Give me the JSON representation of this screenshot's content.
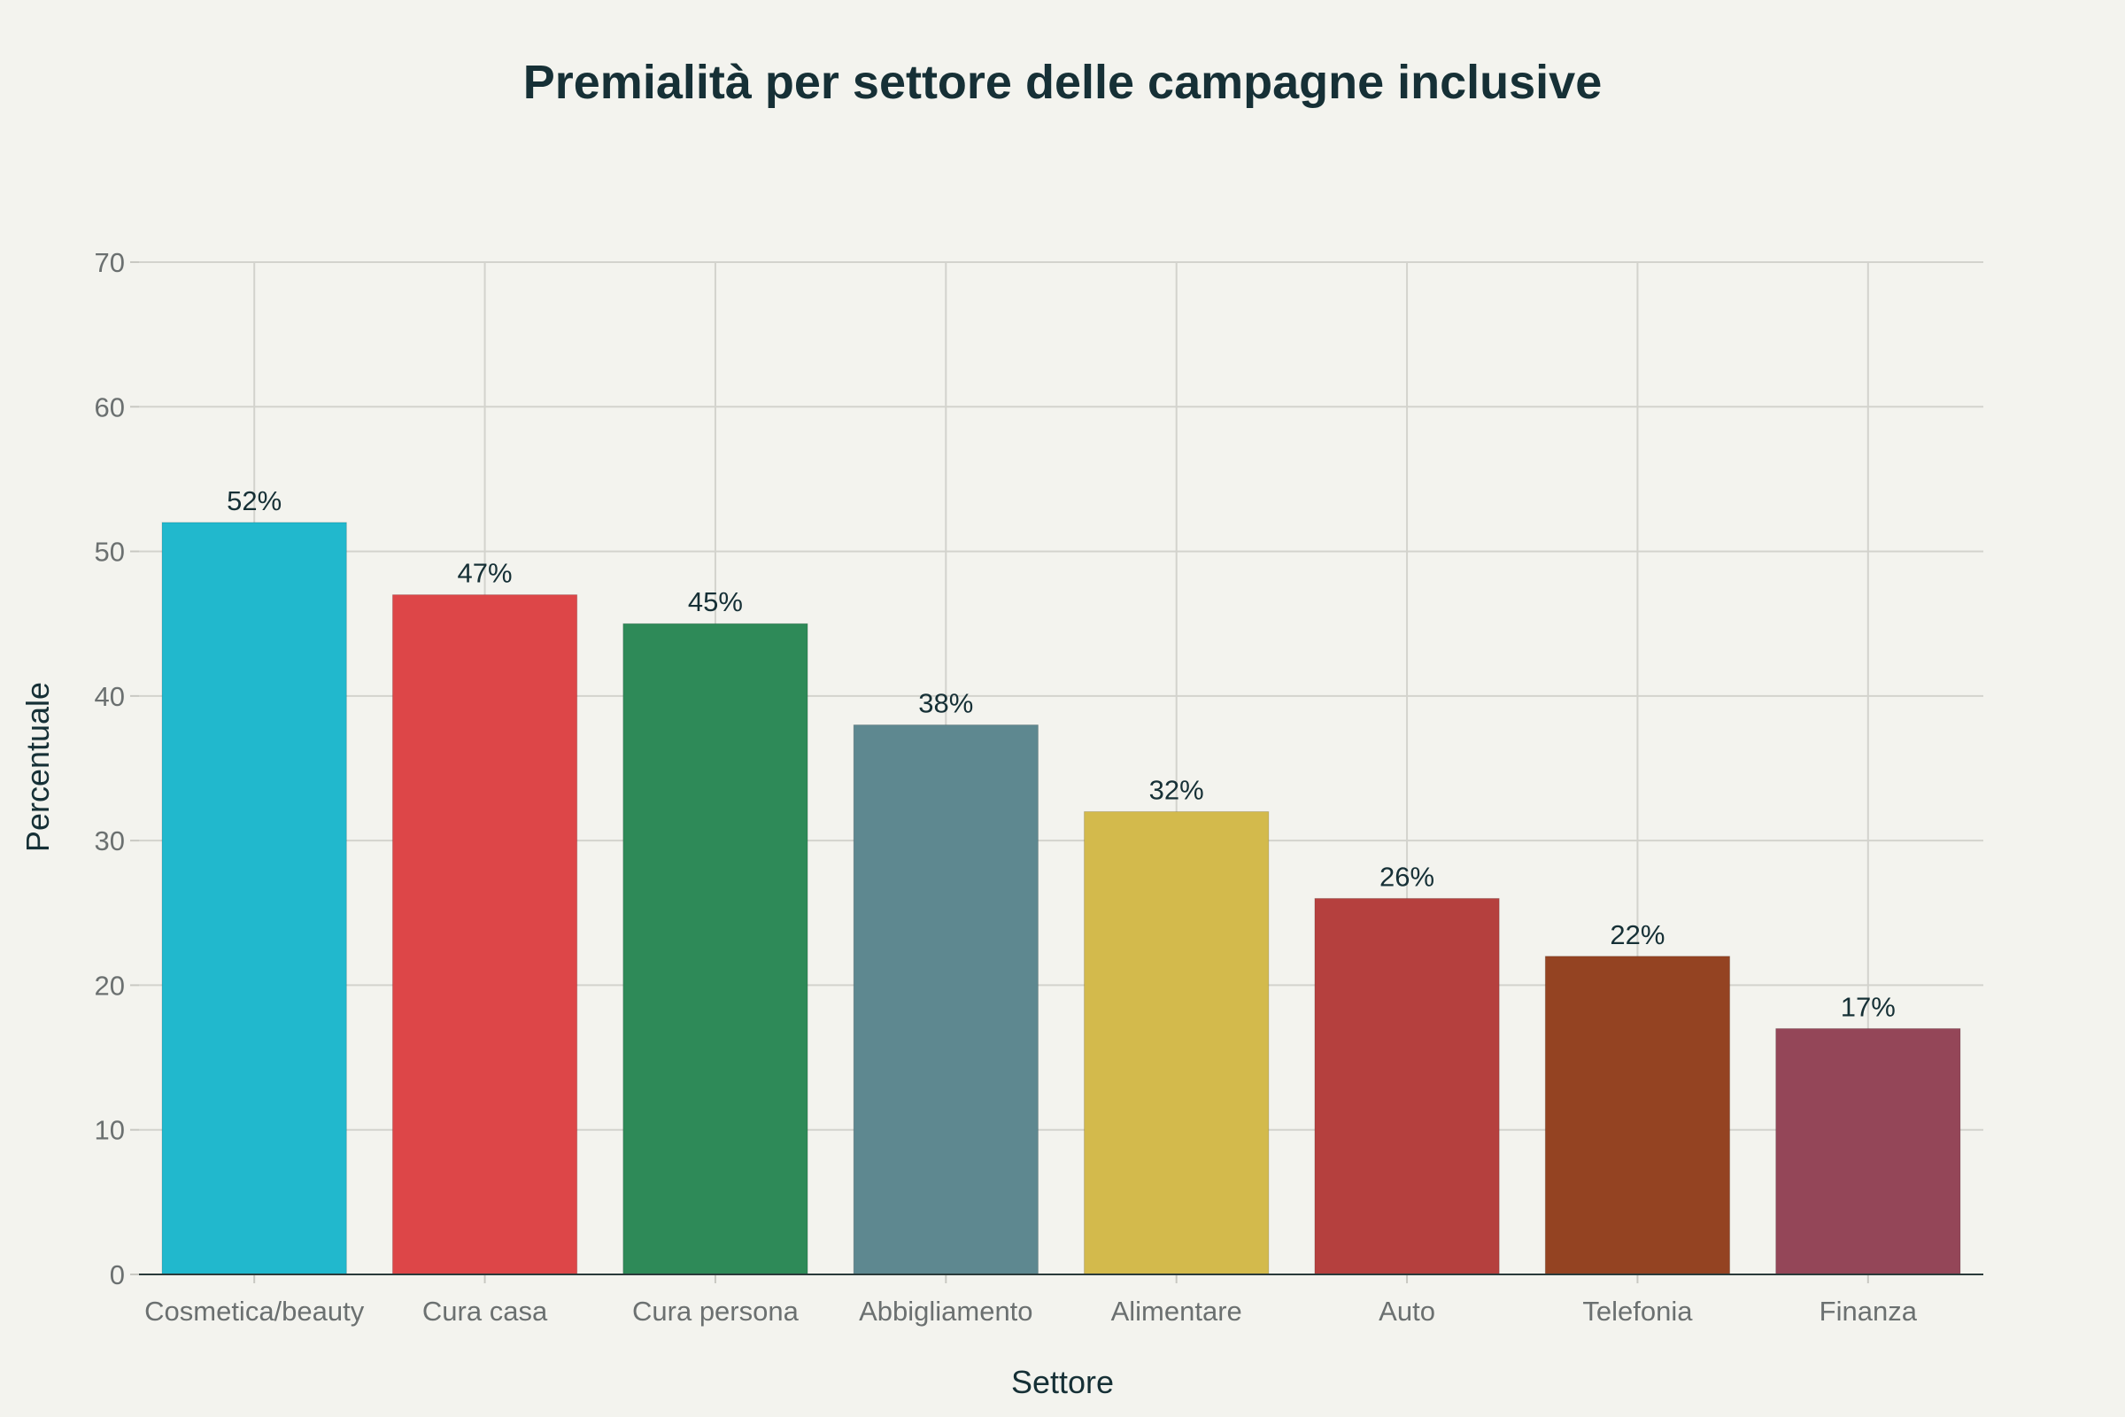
{
  "chart_data": {
    "type": "bar",
    "title": "Premialità per settore delle campagne inclusive",
    "xlabel": "Settore",
    "ylabel": "Percentuale",
    "ylim": [
      0,
      70
    ],
    "yticks": [
      0,
      10,
      20,
      30,
      40,
      50,
      60,
      70
    ],
    "grid": true,
    "legend": "none",
    "categories": [
      "Cosmetica/beauty",
      "Cura casa",
      "Cura persona",
      "Abbigliamento",
      "Alimentare",
      "Auto",
      "Telefonia",
      "Finanza"
    ],
    "values": [
      52,
      47,
      45,
      38,
      32,
      26,
      22,
      17
    ],
    "data_labels": [
      "52%",
      "47%",
      "45%",
      "38%",
      "32%",
      "26%",
      "22%",
      "17%"
    ],
    "colors": [
      "#21b8cd",
      "#dd4648",
      "#2e8a58",
      "#5e8890",
      "#d3ba4c",
      "#b5403e",
      "#944322",
      "#944658"
    ]
  }
}
